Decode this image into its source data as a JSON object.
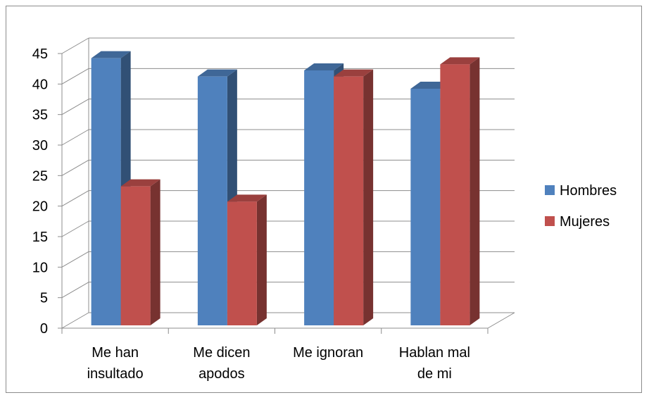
{
  "chart_data": {
    "type": "bar",
    "title": "",
    "xlabel": "",
    "ylabel": "",
    "categories": [
      [
        "Me han",
        "insultado"
      ],
      [
        "Me dicen",
        "apodos"
      ],
      [
        "Me ignoran"
      ],
      [
        "Hablan mal",
        "de mi"
      ]
    ],
    "series": [
      {
        "name": "Hombres",
        "values": [
          44,
          41,
          42,
          39
        ],
        "color": "#4F81BD"
      },
      {
        "name": "Mujeres",
        "values": [
          23,
          20.5,
          41,
          43
        ],
        "color": "#C0504D"
      }
    ],
    "ylim": [
      0,
      45
    ],
    "yticks": [
      "0",
      "5",
      "10",
      "15",
      "20",
      "25",
      "30",
      "35",
      "40",
      "45"
    ],
    "grid": true,
    "legend_position": "right",
    "style": "3d-clustered-column"
  }
}
